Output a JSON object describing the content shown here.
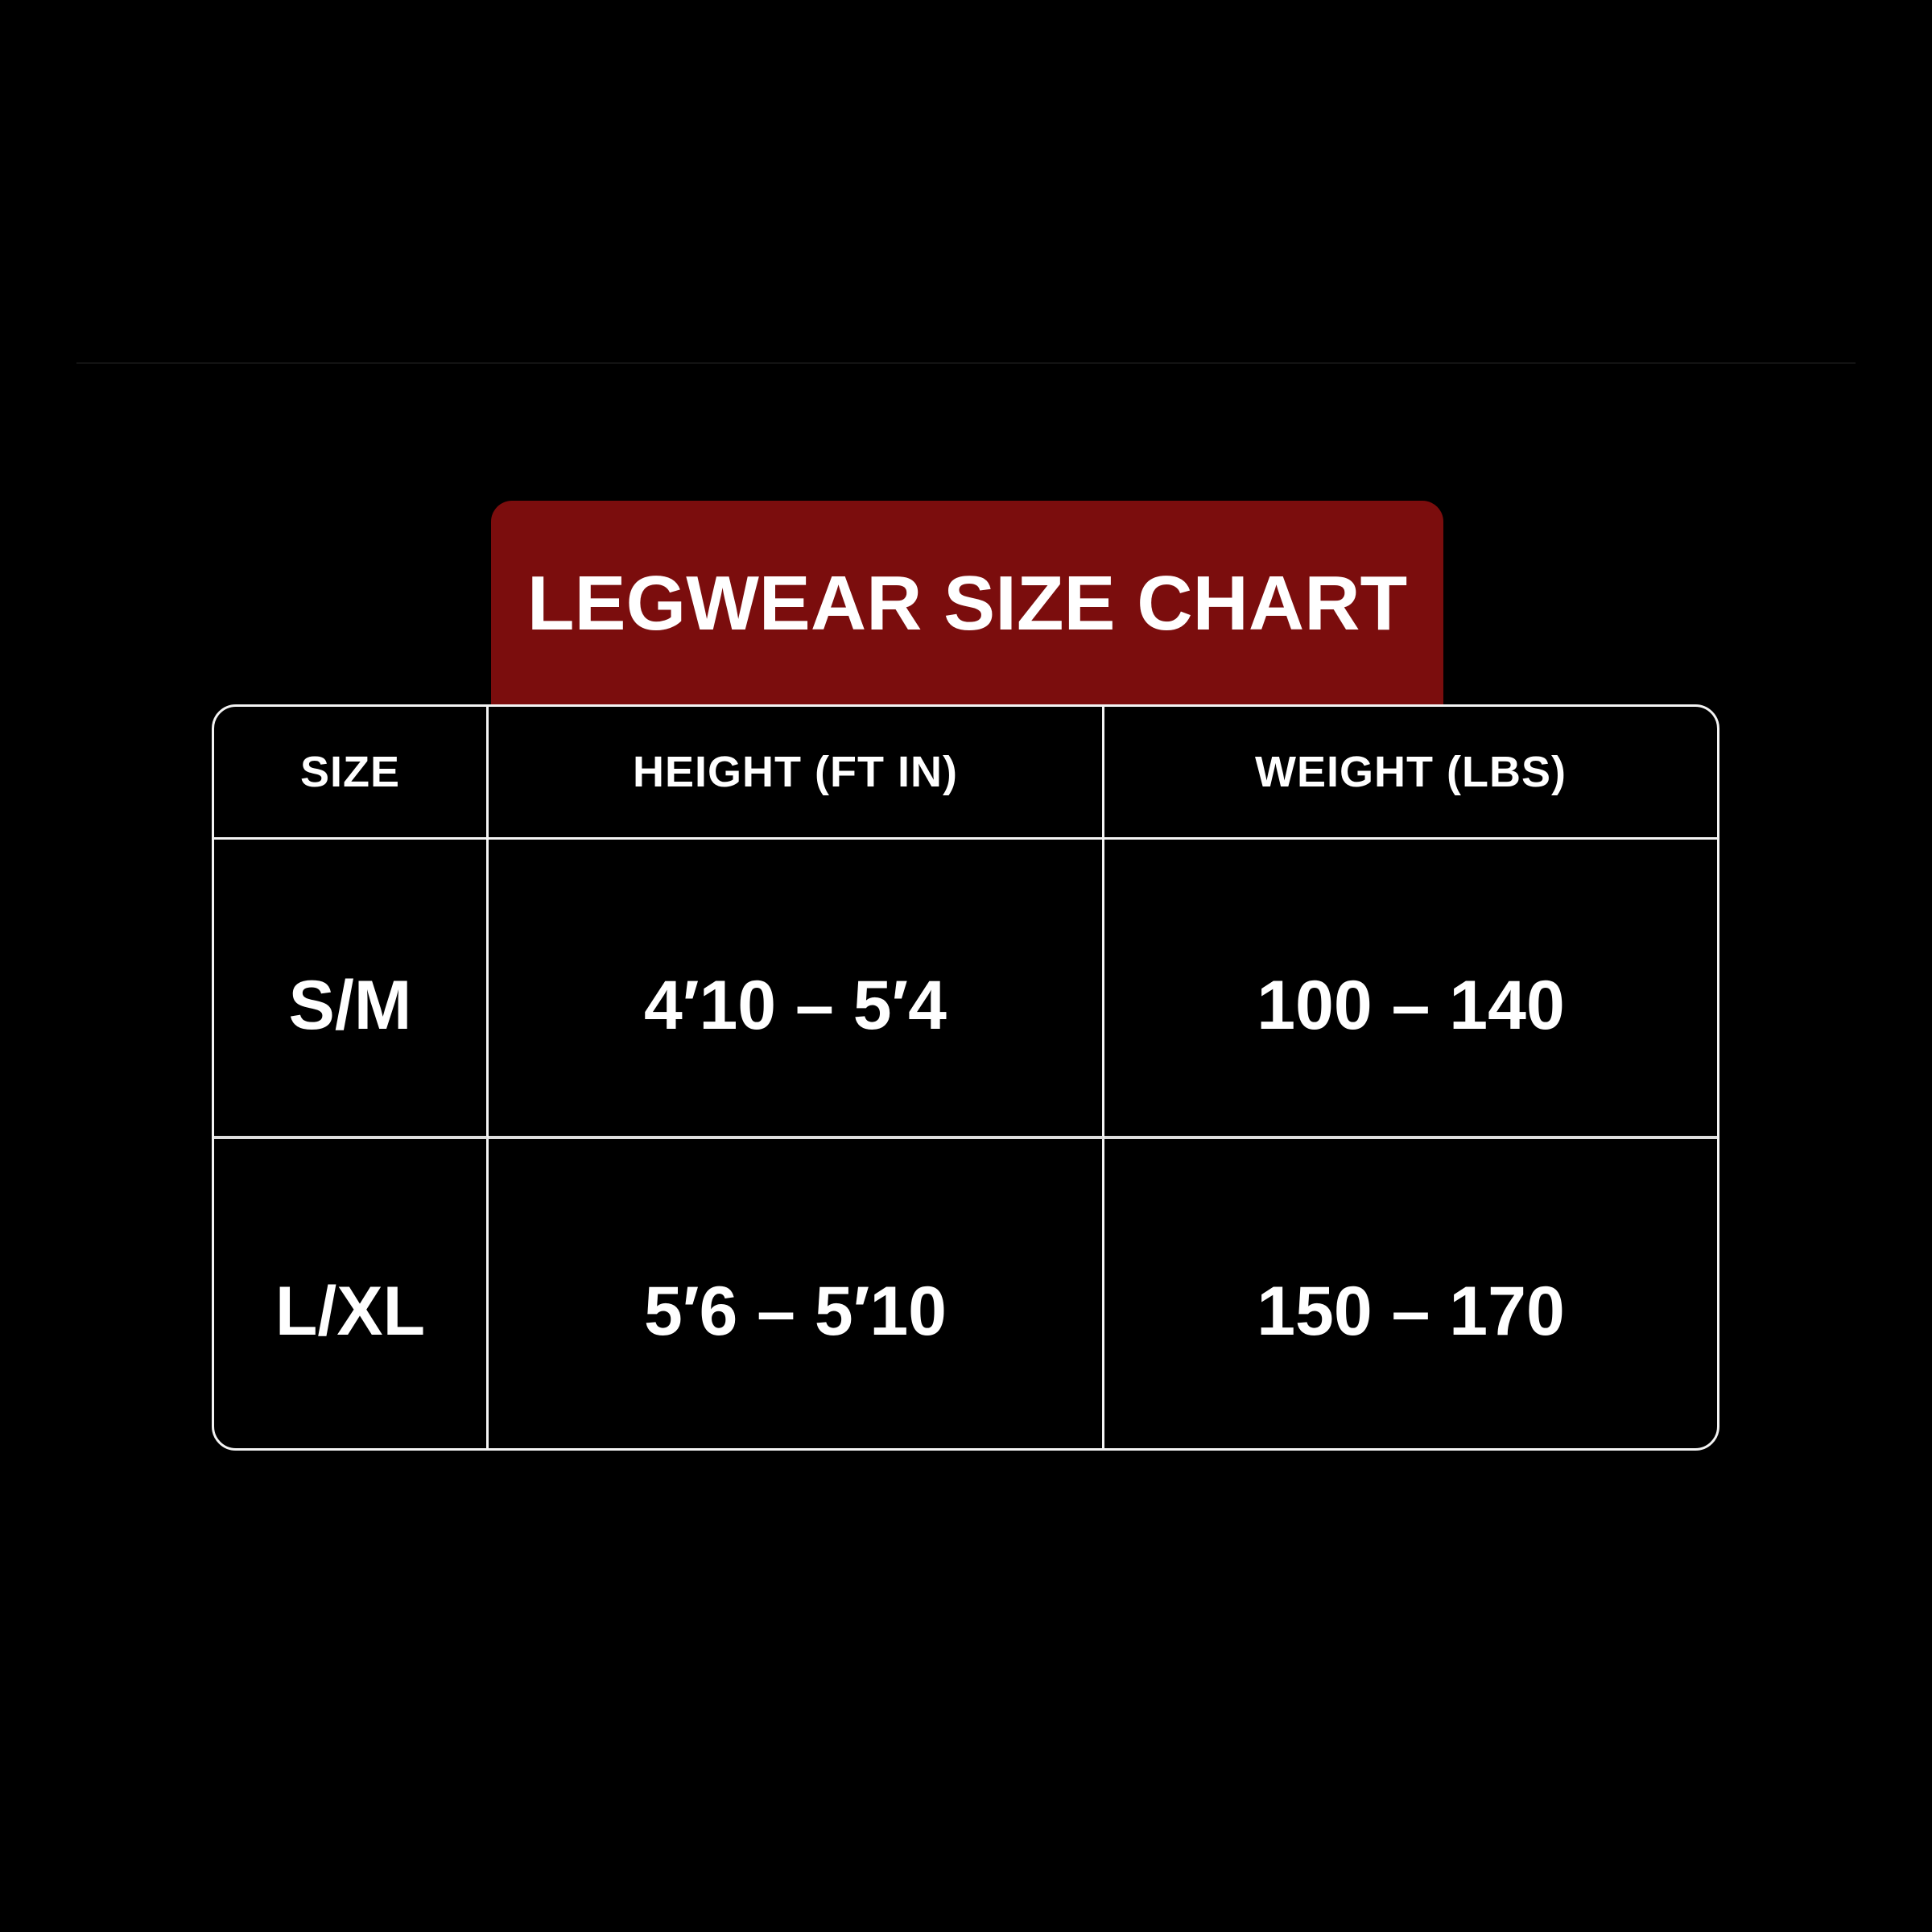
{
  "banner": {
    "title": "LEGWEAR SIZE CHART",
    "background_color": "#7B0D0D",
    "text_color": "#FFFFFF"
  },
  "table": {
    "border_color": "#FFFFFF",
    "background_color": "#000000"
  },
  "chart_data": {
    "type": "table",
    "title": "LEGWEAR SIZE CHART",
    "columns": [
      "SIZE",
      "HEIGHT (FT IN)",
      "WEIGHT (LBS)"
    ],
    "rows": [
      [
        "S/M",
        "4′10 – 5′4",
        "100 – 140"
      ],
      [
        "L/XL",
        "5′6 – 5′10",
        "150 – 170"
      ]
    ],
    "units": {
      "height": "feet and inches",
      "weight": "pounds"
    },
    "layout": {
      "header_row": true,
      "grid": "on",
      "theme": "black background, white borders, dark red title banner"
    }
  }
}
